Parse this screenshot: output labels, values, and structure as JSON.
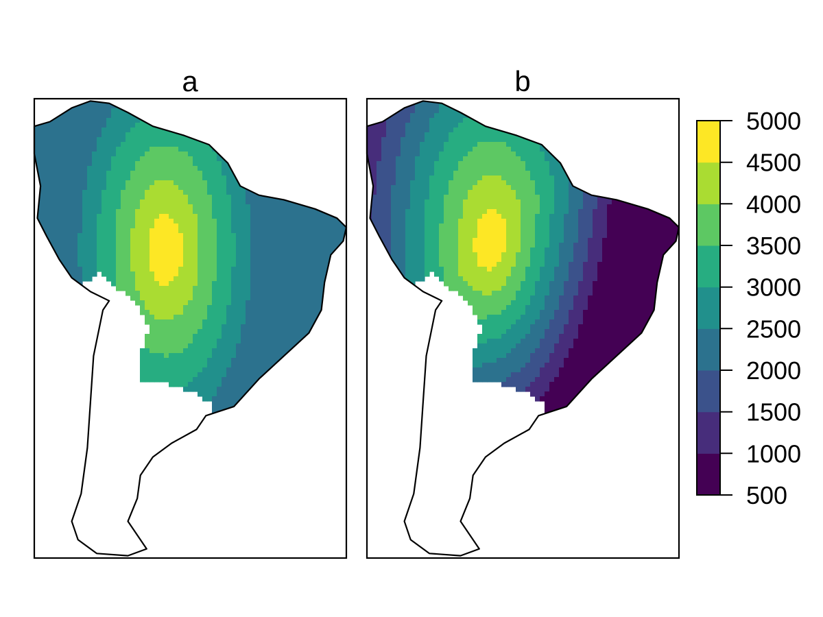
{
  "panels": [
    {
      "id": "a",
      "title": "a",
      "field": {
        "center": [
          0.42,
          0.33
        ],
        "peak": 5000,
        "min": 2000,
        "falloff_per_radius": 3000,
        "skew": [
          0,
          0
        ]
      }
    },
    {
      "id": "b",
      "title": "b",
      "field": {
        "center": [
          0.4,
          0.32
        ],
        "peak": 5000,
        "min": 500,
        "falloff_per_radius": 3000,
        "skew": [
          0.6,
          0.9
        ]
      }
    }
  ],
  "legend": {
    "breaks": [
      500,
      1000,
      1500,
      2000,
      2500,
      3000,
      3500,
      4000,
      4500,
      5000
    ],
    "tick_labels": [
      "500",
      "1000",
      "1500",
      "2000",
      "2500",
      "3000",
      "3500",
      "4000",
      "4500",
      "5000"
    ],
    "colors": [
      "#440154",
      "#472D7B",
      "#3B528B",
      "#2C728E",
      "#21908C",
      "#27AD81",
      "#5DC863",
      "#AADC32",
      "#FDE725"
    ]
  }
}
